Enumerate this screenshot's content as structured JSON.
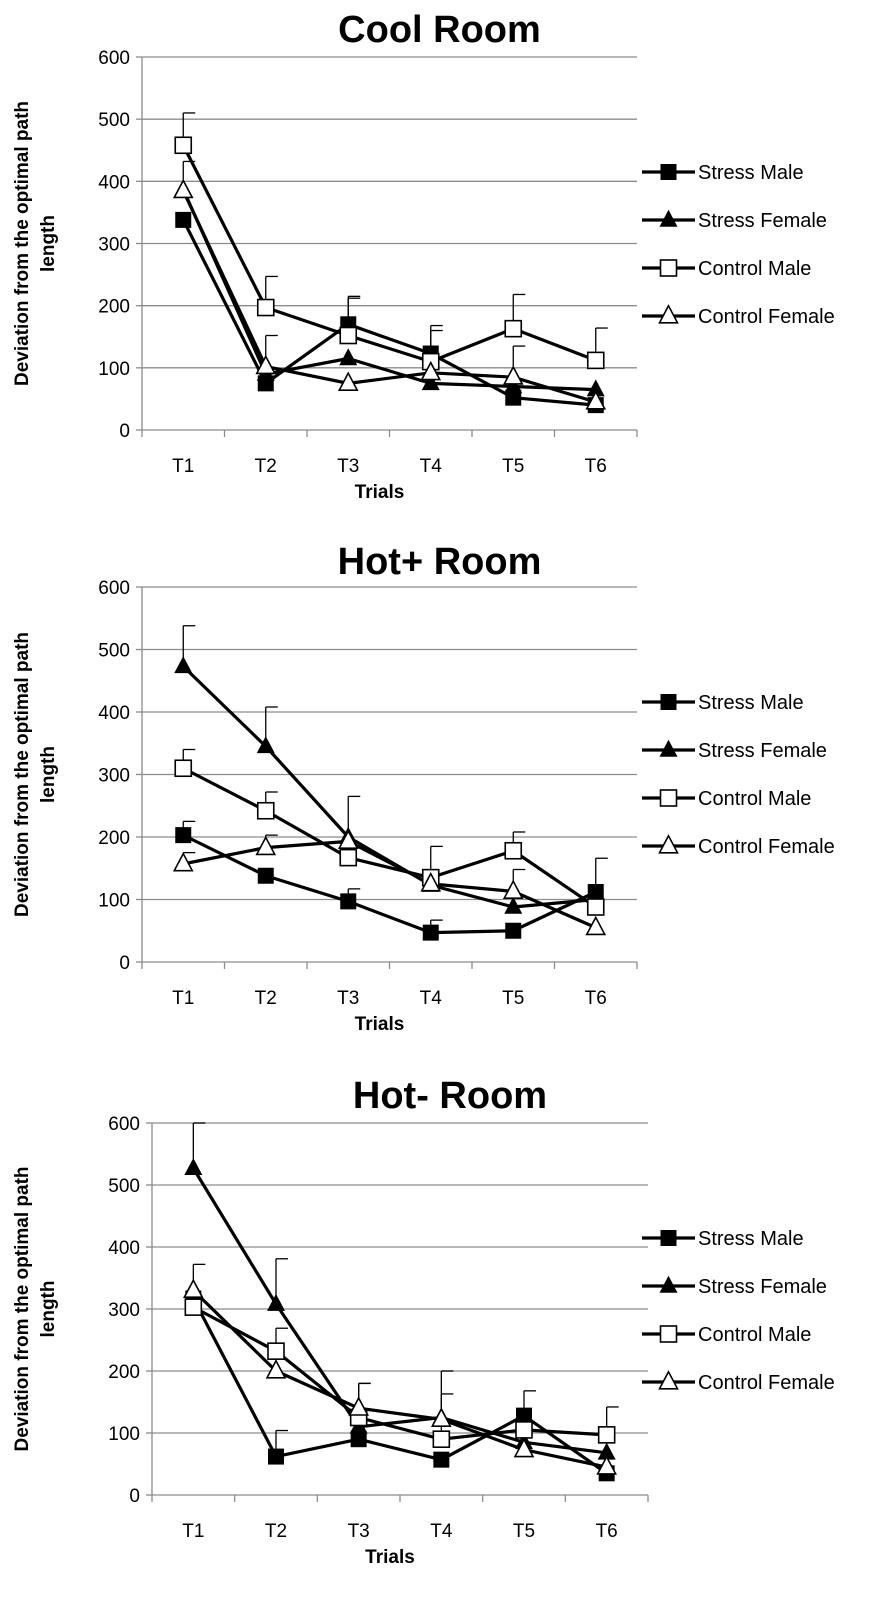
{
  "chart_data": [
    {
      "type": "line",
      "title": "Cool Room",
      "xlabel": "Trials",
      "ylabel": [
        "Deviation from the optimal path",
        "length"
      ],
      "categories": [
        "T1",
        "T2",
        "T3",
        "T4",
        "T5",
        "T6"
      ],
      "ylim": [
        0,
        600
      ],
      "yticks": [
        0,
        100,
        200,
        300,
        400,
        500,
        600
      ],
      "grid": "horizontal",
      "legend_position": "right",
      "series": [
        {
          "name": "Stress Male",
          "marker": "filled-square",
          "values": [
            338,
            75,
            170,
            123,
            52,
            40
          ],
          "errors": [
            0,
            0,
            45,
            45,
            0,
            0
          ]
        },
        {
          "name": "Stress Female",
          "marker": "filled-triangle",
          "values": [
            387,
            90,
            115,
            75,
            70,
            65
          ],
          "errors": [
            45,
            0,
            0,
            0,
            0,
            0
          ]
        },
        {
          "name": "Control Male",
          "marker": "open-square",
          "values": [
            458,
            197,
            152,
            110,
            163,
            112
          ],
          "errors": [
            52,
            50,
            60,
            50,
            55,
            52
          ]
        },
        {
          "name": "Control Female",
          "marker": "open-triangle",
          "values": [
            385,
            102,
            75,
            92,
            85,
            45
          ],
          "errors": [
            0,
            50,
            0,
            0,
            50,
            0
          ]
        }
      ]
    },
    {
      "type": "line",
      "title": "Hot+ Room",
      "xlabel": "Trials",
      "ylabel": [
        "Deviation from the optimal path",
        "length"
      ],
      "categories": [
        "T1",
        "T2",
        "T3",
        "T4",
        "T5",
        "T6"
      ],
      "ylim": [
        0,
        600
      ],
      "yticks": [
        0,
        100,
        200,
        300,
        400,
        500,
        600
      ],
      "grid": "horizontal",
      "legend_position": "right",
      "series": [
        {
          "name": "Stress Male",
          "marker": "filled-square",
          "values": [
            203,
            138,
            97,
            47,
            50,
            112
          ],
          "errors": [
            22,
            0,
            20,
            20,
            0,
            0
          ]
        },
        {
          "name": "Stress Female",
          "marker": "filled-triangle",
          "values": [
            473,
            345,
            200,
            123,
            88,
            100
          ],
          "errors": [
            65,
            63,
            65,
            0,
            0,
            0
          ]
        },
        {
          "name": "Control Male",
          "marker": "open-square",
          "values": [
            310,
            242,
            167,
            135,
            178,
            88
          ],
          "errors": [
            30,
            30,
            0,
            50,
            30,
            78
          ]
        },
        {
          "name": "Control Female",
          "marker": "open-triangle",
          "values": [
            157,
            183,
            193,
            125,
            113,
            55
          ],
          "errors": [
            18,
            20,
            0,
            0,
            35,
            0
          ]
        }
      ]
    },
    {
      "type": "line",
      "title": "Hot- Room",
      "xlabel": "Trials",
      "ylabel": [
        "Deviation from the optimal path",
        "length"
      ],
      "categories": [
        "T1",
        "T2",
        "T3",
        "T4",
        "T5",
        "T6"
      ],
      "ylim": [
        0,
        600
      ],
      "yticks": [
        0,
        100,
        200,
        300,
        400,
        500,
        600
      ],
      "grid": "horizontal",
      "legend_position": "right",
      "series": [
        {
          "name": "Stress Male",
          "marker": "filled-square",
          "values": [
            317,
            62,
            90,
            57,
            128,
            35
          ],
          "errors": [
            55,
            42,
            0,
            0,
            40,
            0
          ]
        },
        {
          "name": "Stress Female",
          "marker": "filled-triangle",
          "values": [
            527,
            308,
            110,
            125,
            85,
            68
          ],
          "errors": [
            73,
            73,
            70,
            75,
            0,
            0
          ]
        },
        {
          "name": "Control Male",
          "marker": "open-square",
          "values": [
            303,
            232,
            125,
            90,
            105,
            97
          ],
          "errors": [
            0,
            37,
            0,
            73,
            0,
            45
          ]
        },
        {
          "name": "Control Female",
          "marker": "open-triangle",
          "values": [
            330,
            200,
            140,
            122,
            73,
            45
          ],
          "errors": [
            0,
            0,
            40,
            0,
            0,
            0
          ]
        }
      ]
    }
  ]
}
